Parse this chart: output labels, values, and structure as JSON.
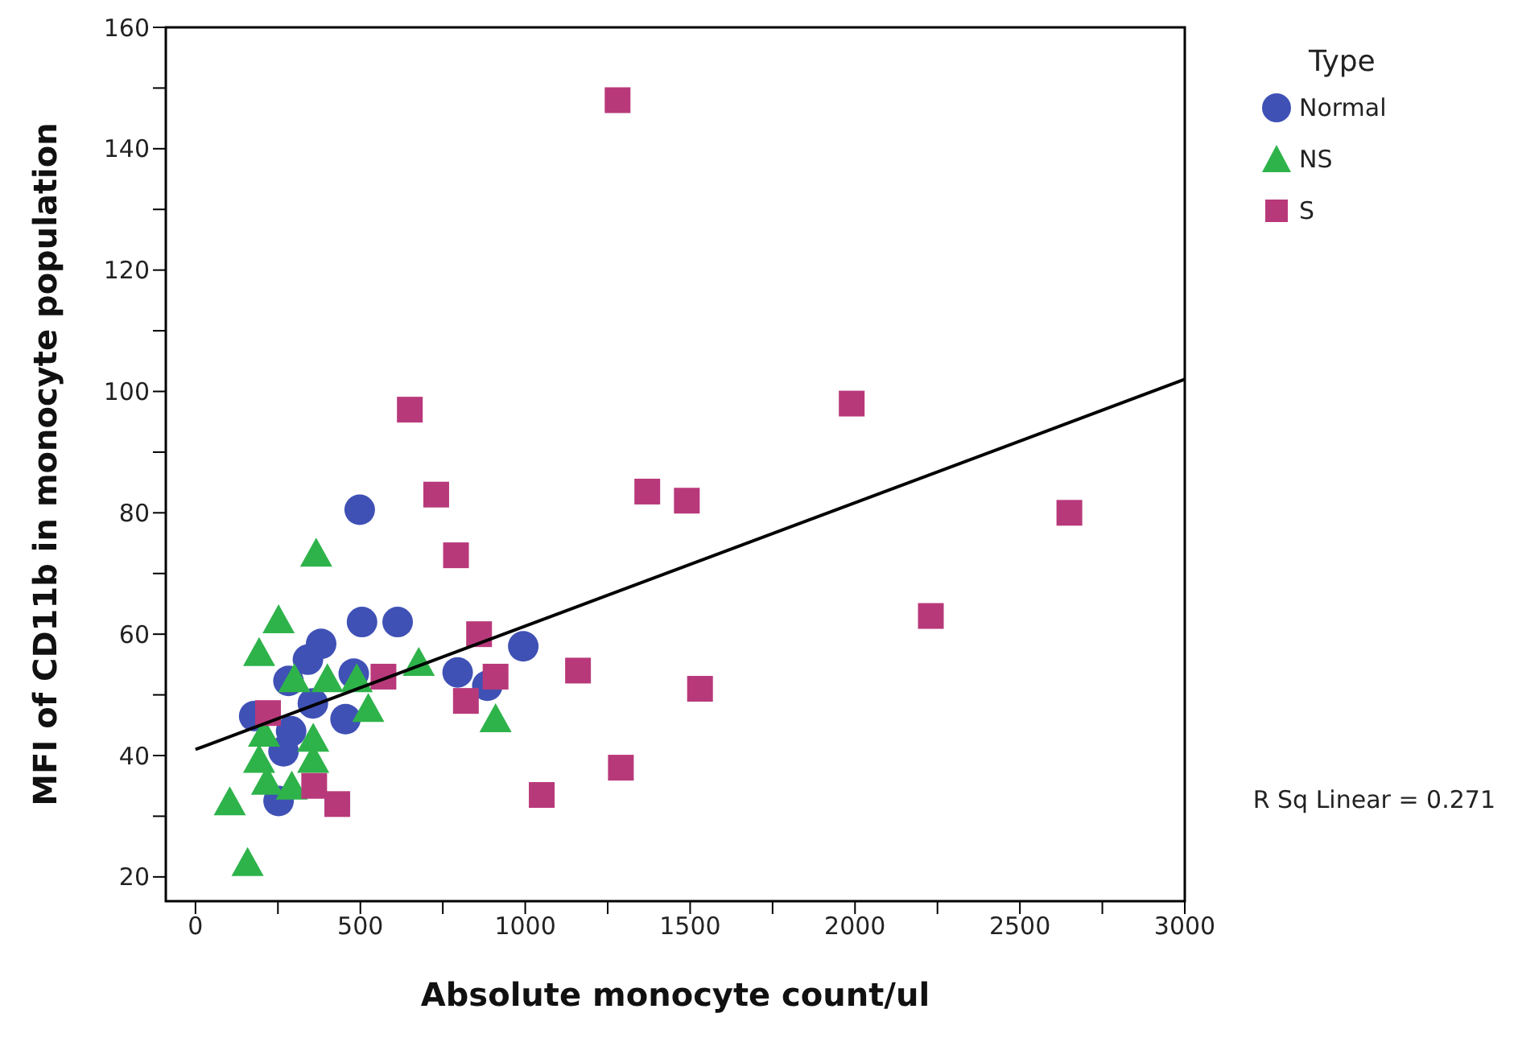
{
  "chart_data": {
    "type": "scatter",
    "xlabel": "Absolute monocyte count/ul",
    "ylabel": "MFI of CD11b in monocyte population",
    "legend_title": "Type",
    "legend": "top right",
    "xlim": [
      -90,
      3000
    ],
    "ylim": [
      16,
      160
    ],
    "xticks": [
      0,
      {
        "value": 250,
        "label": null
      },
      500,
      {
        "value": 750,
        "label": null
      },
      1000,
      {
        "value": 1250,
        "label": null
      },
      1500,
      {
        "value": 1750,
        "label": null
      },
      2000,
      {
        "value": 2250,
        "label": null
      },
      2500,
      {
        "value": 2750,
        "label": null
      },
      3000
    ],
    "yticks": [
      20,
      {
        "value": 30,
        "label": null
      },
      40,
      {
        "value": 50,
        "label": null
      },
      60,
      {
        "value": 70,
        "label": null
      },
      80,
      {
        "value": 90,
        "label": null
      },
      100,
      {
        "value": 110,
        "label": null
      },
      120,
      {
        "value": 130,
        "label": null
      },
      140,
      {
        "value": 150,
        "label": null
      },
      160
    ],
    "annotations": [
      "R Sq Linear = 0.271"
    ],
    "series": [
      {
        "name": "Normal",
        "color": "#3f51b5",
        "marker": "circle",
        "x": [
          498,
          505,
          613,
          381,
          994,
          795,
          885,
          480,
          341,
          282,
          178,
          455,
          267,
          252,
          356,
          290
        ],
        "values": [
          80.5,
          62,
          62,
          58.4,
          58,
          53.7,
          51.5,
          53.5,
          55.8,
          52.3,
          46.5,
          46,
          40.7,
          32.5,
          48.6,
          44
        ]
      },
      {
        "name": "NS",
        "color": "#2eb34b",
        "marker": "triangle",
        "x": [
          366,
          252,
          193,
          300,
          400,
          489,
          677,
          524,
          910,
          208,
          357,
          193,
          357,
          217,
          292,
          104,
          158
        ],
        "values": [
          73,
          62,
          56.6,
          52.3,
          52.3,
          52.3,
          55,
          47.4,
          45.7,
          43.3,
          42.5,
          39,
          39,
          35.4,
          34.6,
          32,
          22
        ]
      },
      {
        "name": "S",
        "color": "#b8397a",
        "marker": "square",
        "x": [
          1280,
          650,
          1990,
          730,
          1370,
          1490,
          2650,
          790,
          860,
          2230,
          570,
          1160,
          910,
          820,
          1530,
          1290,
          1050,
          360,
          430,
          220
        ],
        "values": [
          148,
          97,
          98,
          83,
          83.5,
          82,
          80,
          73,
          60,
          63,
          53,
          54,
          53,
          49,
          51,
          38,
          33.5,
          35,
          32,
          47
        ]
      },
      {
        "type": "line",
        "color": "#000000",
        "marker": "none",
        "x": [
          0,
          3000
        ],
        "values": [
          41,
          102
        ]
      }
    ]
  }
}
